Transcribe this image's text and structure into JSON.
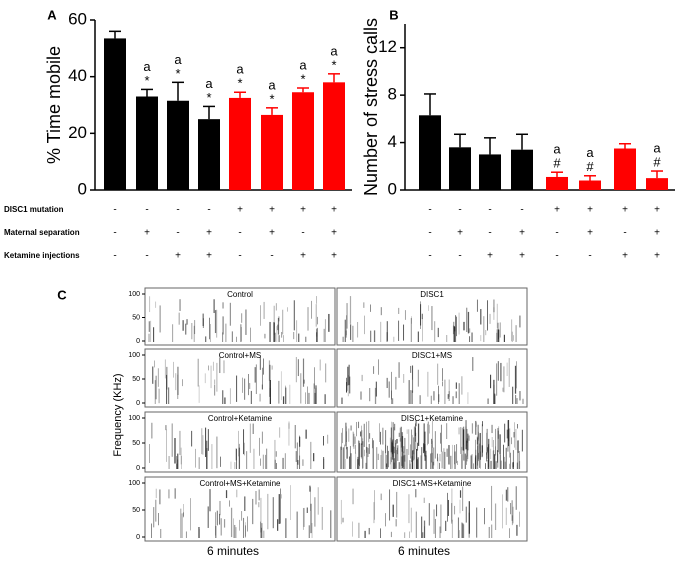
{
  "chart_data": [
    {
      "type": "bar",
      "panel_label": "A",
      "ylabel": "% Time mobile",
      "ylim": [
        0,
        60
      ],
      "yticks": [
        0,
        20,
        40,
        60
      ],
      "values": [
        53.5,
        33,
        31.5,
        25,
        32.5,
        26.5,
        34.5,
        38
      ],
      "errors": [
        2.5,
        2.5,
        6.5,
        4.5,
        2,
        2.5,
        1.5,
        3
      ],
      "colors": [
        "#000000",
        "#000000",
        "#000000",
        "#000000",
        "#ff0000",
        "#ff0000",
        "#ff0000",
        "#ff0000"
      ],
      "annotations": [
        [],
        [
          "a",
          "*"
        ],
        [
          "a",
          "*"
        ],
        [
          "a",
          "*"
        ],
        [
          "a",
          "*"
        ],
        [
          "a",
          "*"
        ],
        [
          "a",
          "*"
        ],
        [
          "a",
          "*"
        ]
      ],
      "factor_rows": [
        {
          "label": "DISC1 mutation",
          "values": [
            "-",
            "-",
            "-",
            "-",
            "+",
            "+",
            "+",
            "+"
          ]
        },
        {
          "label": "Maternal separation",
          "values": [
            "-",
            "+",
            "-",
            "+",
            "-",
            "+",
            "-",
            "+"
          ]
        },
        {
          "label": "Ketamine injections",
          "values": [
            "-",
            "-",
            "+",
            "+",
            "-",
            "-",
            "+",
            "+"
          ]
        }
      ]
    },
    {
      "type": "bar",
      "panel_label": "B",
      "ylabel": "Number of stress calls",
      "ylim": [
        0,
        14
      ],
      "yticks": [
        0,
        4,
        8,
        12
      ],
      "values": [
        6.3,
        3.6,
        3.0,
        3.4,
        1.1,
        0.8,
        3.5,
        1.0
      ],
      "errors": [
        1.8,
        1.1,
        1.4,
        1.3,
        0.4,
        0.4,
        0.4,
        0.6
      ],
      "colors": [
        "#000000",
        "#000000",
        "#000000",
        "#000000",
        "#ff0000",
        "#ff0000",
        "#ff0000",
        "#ff0000"
      ],
      "annotations": [
        [],
        [],
        [],
        [],
        [
          "a",
          "#"
        ],
        [
          "a",
          "#"
        ],
        [],
        [
          "a",
          "#"
        ]
      ],
      "factor_rows": [
        {
          "values": [
            "-",
            "-",
            "-",
            "-",
            "+",
            "+",
            "+",
            "+"
          ]
        },
        {
          "values": [
            "-",
            "+",
            "-",
            "+",
            "-",
            "+",
            "-",
            "+"
          ]
        },
        {
          "values": [
            "-",
            "-",
            "+",
            "+",
            "-",
            "-",
            "+",
            "+"
          ]
        }
      ]
    },
    {
      "type": "spectrogram",
      "panel_label": "C",
      "ylabel": "Frequency (KHz)",
      "ylim": [
        0,
        100
      ],
      "yticks": [
        0,
        50,
        100
      ],
      "panels": [
        "Control",
        "DISC1",
        "Control+MS",
        "DISC1+MS",
        "Control+Ketamine",
        "DISC1+Ketamine",
        "Control+MS+Ketamine",
        "DISC1+MS+Ketamine"
      ],
      "xlabels": [
        "6 minutes",
        "6 minutes"
      ]
    }
  ]
}
